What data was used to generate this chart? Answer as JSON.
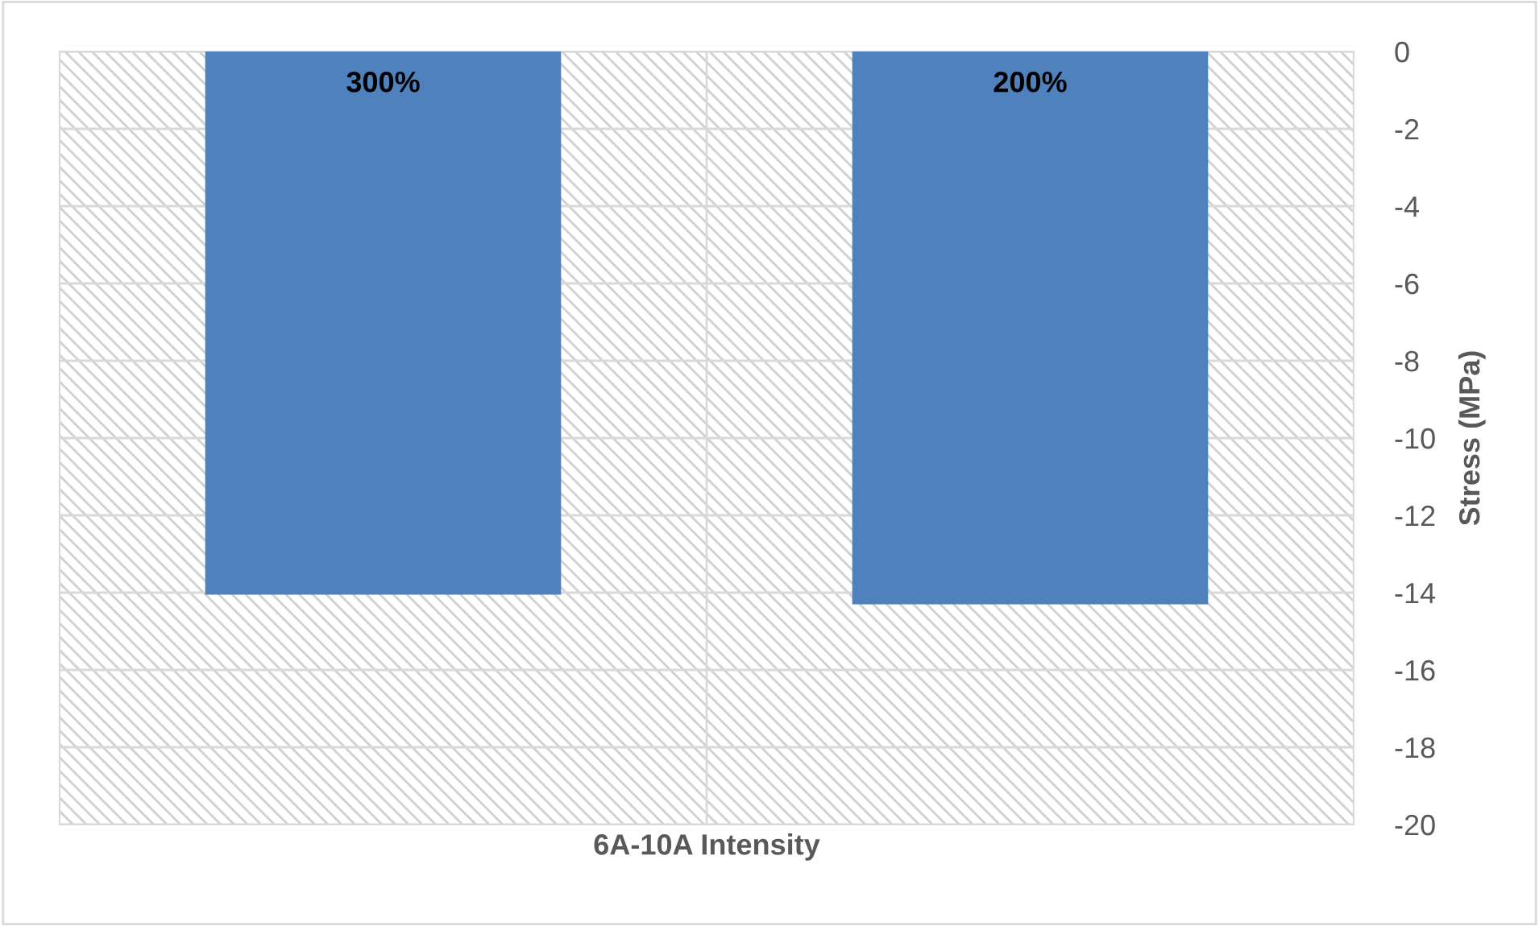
{
  "chart_data": {
    "type": "bar",
    "xlabel": "6A-10A Intensity",
    "ylabel": "Stress (MPa)",
    "categories": [
      "300%",
      "200%"
    ],
    "values": [
      -14.05,
      -14.3
    ],
    "color": "#4f81bd",
    "ylim": [
      -20,
      0
    ],
    "yticks": [
      0,
      -2,
      -4,
      -6,
      -8,
      -10,
      -12,
      -14,
      -16,
      -18,
      -20
    ],
    "grid": true
  }
}
